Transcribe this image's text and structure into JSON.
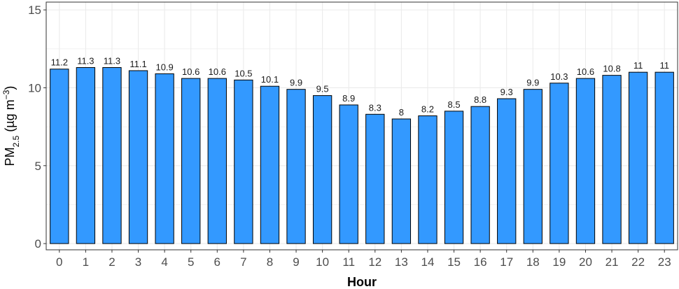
{
  "chart_data": {
    "type": "bar",
    "categories": [
      "0",
      "1",
      "2",
      "3",
      "4",
      "5",
      "6",
      "7",
      "8",
      "9",
      "10",
      "11",
      "12",
      "13",
      "14",
      "15",
      "16",
      "17",
      "18",
      "19",
      "20",
      "21",
      "22",
      "23"
    ],
    "values": [
      11.2,
      11.3,
      11.3,
      11.1,
      10.9,
      10.6,
      10.6,
      10.5,
      10.1,
      9.9,
      9.5,
      8.9,
      8.3,
      8,
      8.2,
      8.5,
      8.8,
      9.3,
      9.9,
      10.3,
      10.6,
      10.8,
      11,
      11
    ],
    "data_labels": [
      "11.2",
      "11.3",
      "11.3",
      "11.1",
      "10.9",
      "10.6",
      "10.6",
      "10.5",
      "10.1",
      "9.9",
      "9.5",
      "8.9",
      "8.3",
      "8",
      "8.2",
      "8.5",
      "8.8",
      "9.3",
      "9.9",
      "10.3",
      "10.6",
      "10.8",
      "11",
      "11"
    ],
    "xlabel": "Hour",
    "ylabel": {
      "base": "PM",
      "sub": "2.5",
      "mid": " (µg m",
      "sup": "−3",
      "end": ")"
    },
    "ylim": [
      -0.4,
      15.5
    ],
    "yticks": [
      0,
      5,
      10,
      15
    ],
    "grid": true,
    "legend": "none",
    "colors": {
      "bar": "#3399ff",
      "bar_outline": "#000000",
      "grid": "#ebebeb",
      "panel_border": "#333333"
    }
  }
}
